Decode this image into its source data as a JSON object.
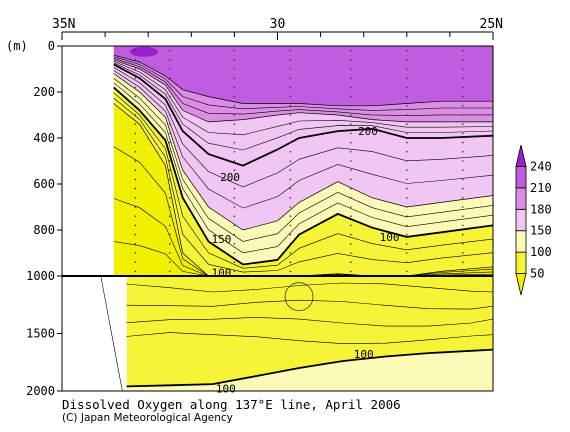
{
  "chart_data": {
    "type": "heatmap",
    "subtype": "contour-section",
    "title": "Dissolved Oxygen along 137°E line, April 2006",
    "credit": "(C) Japan Meteorological Agency",
    "x_ticks": [
      "35N",
      "30",
      "25N"
    ],
    "x_range_lat_n": [
      35,
      25
    ],
    "y_unit": "(m)",
    "y_ticks_upper": [
      0,
      200,
      400,
      600,
      800,
      1000
    ],
    "y_ticks_lower": [
      1000,
      1500,
      2000
    ],
    "y_range_m": [
      0,
      2000
    ],
    "y_axis_break_at": 1000,
    "colorbar_levels": [
      50,
      100,
      150,
      180,
      210,
      240
    ],
    "colorbar_colors": {
      "lt50": "#f0f000",
      "50": "#f6f436",
      "100": "#fbfab6",
      "150": "#f2c6f2",
      "180": "#dc8ee6",
      "210": "#c05ce0",
      "240": "#9a1fd0"
    },
    "station_latitudes": [
      33.3,
      32.5,
      31.0,
      29.7,
      28.3,
      27.0,
      25.7
    ],
    "contour_labels": [
      {
        "text": "200",
        "lat": 27.9,
        "depth": 370
      },
      {
        "text": "200",
        "lat": 31.1,
        "depth": 570
      },
      {
        "text": "150",
        "lat": 31.3,
        "depth": 840
      },
      {
        "text": "100",
        "lat": 27.4,
        "depth": 830
      },
      {
        "text": "100",
        "lat": 31.3,
        "depth": 985
      },
      {
        "text": "100",
        "lat": 28.0,
        "depth": 1680
      },
      {
        "text": "100",
        "lat": 31.2,
        "depth": 1980
      }
    ],
    "profiles_upper": {
      "lat": [
        33.8,
        33.2,
        32.6,
        32.2,
        31.6,
        30.8,
        30.0,
        29.5,
        28.6,
        27.8,
        27.0,
        26.2,
        25.0
      ],
      "d210": [
        40,
        70,
        130,
        190,
        220,
        250,
        250,
        250,
        260,
        260,
        250,
        240,
        240
      ],
      "d180": [
        60,
        100,
        170,
        280,
        330,
        320,
        300,
        290,
        300,
        320,
        330,
        330,
        330
      ],
      "d200": [
        80,
        140,
        230,
        370,
        470,
        520,
        450,
        400,
        370,
        360,
        400,
        400,
        390
      ],
      "d150": [
        120,
        200,
        310,
        540,
        700,
        800,
        760,
        680,
        590,
        660,
        700,
        680,
        650
      ],
      "d100": [
        180,
        280,
        410,
        660,
        850,
        950,
        930,
        820,
        730,
        790,
        830,
        810,
        780
      ],
      "d50": [
        250,
        340,
        520,
        900,
        1000,
        1000,
        1000,
        1000,
        990,
        1000,
        1000,
        980,
        960
      ]
    },
    "profiles_lower": {
      "lat": [
        33.5,
        32.5,
        31.5,
        30.5,
        29.5,
        28.5,
        27.5,
        26.5,
        25.5,
        25.0
      ],
      "d100": [
        1960,
        1950,
        1940,
        1870,
        1800,
        1740,
        1700,
        1670,
        1650,
        1640
      ]
    }
  }
}
